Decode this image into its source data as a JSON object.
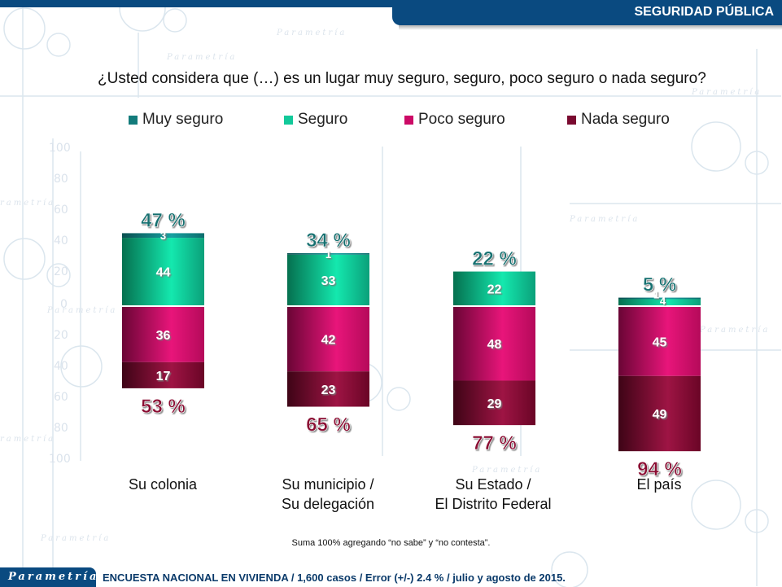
{
  "header": {
    "title": "SEGURIDAD PÚBLICA"
  },
  "question": "¿Usted considera que (…) es un lugar muy seguro, seguro, poco seguro o nada seguro?",
  "legend": [
    {
      "label": "Muy seguro",
      "color": "#137b7b"
    },
    {
      "label": "Seguro",
      "color": "#12c99a"
    },
    {
      "label": "Poco seguro",
      "color": "#cc0a66"
    },
    {
      "label": "Nada seguro",
      "color": "#7a0a30"
    }
  ],
  "footnote": "Suma 100% agregando “no sabe” y “no contesta”.",
  "footer": {
    "logo": "Parametría",
    "text": "ENCUESTA NACIONAL EN VIVIENDA / 1,600 casos / Error (+/-) 2.4 % / julio y agosto de 2015."
  },
  "chart_data": {
    "type": "bar",
    "stacked": true,
    "diverging": true,
    "title": "¿Usted considera que (…) es un lugar muy seguro, seguro, poco seguro o nada seguro?",
    "categories": [
      "Su colonia",
      "Su municipio / Su delegación",
      "Su Estado / El Distrito Federal",
      "El país"
    ],
    "category_lines": [
      [
        "Su colonia"
      ],
      [
        "Su municipio /",
        "Su delegación"
      ],
      [
        "Su Estado /",
        "El Distrito Federal"
      ],
      [
        "El país"
      ]
    ],
    "series": [
      {
        "name": "Muy seguro",
        "direction": "positive",
        "values": [
          3,
          1,
          0,
          1
        ]
      },
      {
        "name": "Seguro",
        "direction": "positive",
        "values": [
          44,
          33,
          22,
          4
        ]
      },
      {
        "name": "Poco seguro",
        "direction": "negative",
        "values": [
          36,
          42,
          48,
          45
        ]
      },
      {
        "name": "Nada seguro",
        "direction": "negative",
        "values": [
          17,
          23,
          29,
          49
        ]
      }
    ],
    "totals_positive": [
      "47 %",
      "34 %",
      "22 %",
      "5 %"
    ],
    "totals_negative": [
      "53 %",
      "65 %",
      "77 %",
      "94 %"
    ],
    "yaxis_ticks": [
      100,
      80,
      60,
      40,
      20,
      0,
      -20,
      -40,
      -60,
      -80,
      -100
    ],
    "yaxis_tick_labels": [
      "100",
      "80",
      "60",
      "40",
      "20",
      "0",
      "20",
      "40",
      "60",
      "80",
      "100"
    ],
    "ylim": [
      -100,
      100
    ],
    "xlabel": "",
    "ylabel": "",
    "grid": false,
    "legend_position": "top"
  }
}
